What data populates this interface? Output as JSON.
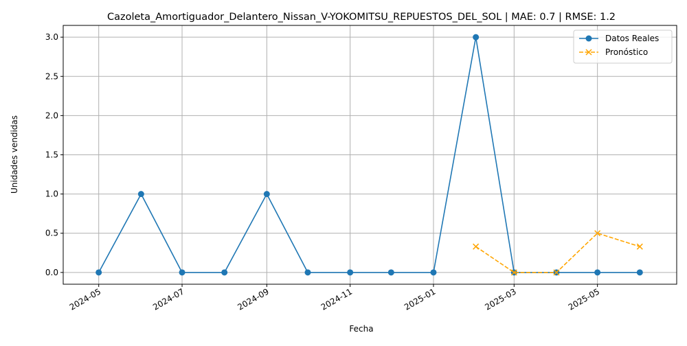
{
  "chart_data": {
    "type": "line",
    "title": "Cazoleta_Amortiguador_Delantero_Nissan_V-YOKOMITSU_REPUESTOS_DEL_SOL | MAE: 0.7 | RMSE: 1.2",
    "xlabel": "Fecha",
    "ylabel": "Unidades vendidas",
    "ylim": [
      -0.15,
      3.15
    ],
    "xlim": [
      "2024-04-05",
      "2025-06-28"
    ],
    "grid": true,
    "legend_position": "top-right",
    "x_ticks": [
      "2024-05",
      "2024-07",
      "2024-09",
      "2024-11",
      "2025-01",
      "2025-03",
      "2025-05"
    ],
    "y_ticks": [
      "0.0",
      "0.5",
      "1.0",
      "1.5",
      "2.0",
      "2.5",
      "3.0"
    ],
    "series": [
      {
        "name": "Datos Reales",
        "color": "#1f77b4",
        "marker": "circle",
        "line_style": "solid",
        "x": [
          "2024-05-01",
          "2024-06-01",
          "2024-07-01",
          "2024-08-01",
          "2024-09-01",
          "2024-10-01",
          "2024-11-01",
          "2024-12-01",
          "2025-01-01",
          "2025-02-01",
          "2025-03-01",
          "2025-04-01",
          "2025-05-01",
          "2025-06-01"
        ],
        "values": [
          0,
          1,
          0,
          0,
          1,
          0,
          0,
          0,
          0,
          3,
          0,
          0,
          0,
          0
        ]
      },
      {
        "name": "Pronóstico",
        "color": "#ffa500",
        "marker": "x",
        "line_style": "dashed",
        "x": [
          "2025-02-01",
          "2025-03-01",
          "2025-04-01",
          "2025-05-01",
          "2025-06-01"
        ],
        "values": [
          0.33,
          0,
          0,
          0.5,
          0.33
        ]
      }
    ]
  }
}
